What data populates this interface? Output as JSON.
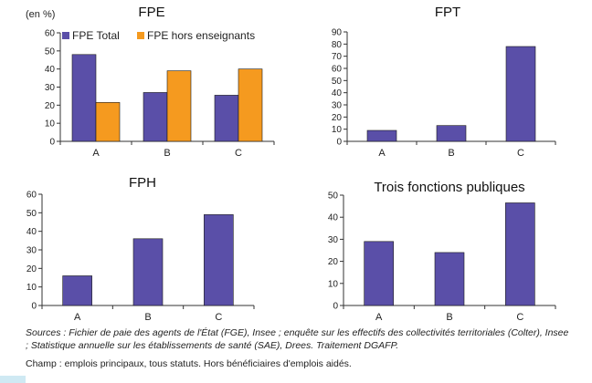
{
  "unit_label": "(en %)",
  "colors": {
    "series1": "#5a4fa8",
    "series2": "#f59a1f",
    "axis": "#333333",
    "grid": "#dddddd"
  },
  "chart_data": [
    {
      "type": "bar",
      "title": "FPE",
      "categories": [
        "A",
        "B",
        "C"
      ],
      "series": [
        {
          "name": "FPE Total",
          "values": [
            48,
            27,
            25.5
          ]
        },
        {
          "name": "FPE hors enseignants",
          "values": [
            21.5,
            39,
            40
          ]
        }
      ],
      "ylim": [
        0,
        60
      ],
      "yticks": [
        0,
        10,
        20,
        30,
        40,
        50,
        60
      ],
      "legend": "top-left"
    },
    {
      "type": "bar",
      "title": "FPT",
      "categories": [
        "A",
        "B",
        "C"
      ],
      "series": [
        {
          "values": [
            9,
            13,
            78
          ]
        }
      ],
      "ylim": [
        0,
        90
      ],
      "yticks": [
        0,
        10,
        20,
        30,
        40,
        50,
        60,
        70,
        80,
        90
      ]
    },
    {
      "type": "bar",
      "title": "FPH",
      "categories": [
        "A",
        "B",
        "C"
      ],
      "series": [
        {
          "values": [
            16,
            36,
            49
          ]
        }
      ],
      "ylim": [
        0,
        60
      ],
      "yticks": [
        0,
        10,
        20,
        30,
        40,
        50,
        60
      ]
    },
    {
      "type": "bar",
      "title": "Trois fonctions publiques",
      "categories": [
        "A",
        "B",
        "C"
      ],
      "series": [
        {
          "values": [
            29,
            24,
            46.5
          ]
        }
      ],
      "ylim": [
        0,
        50
      ],
      "yticks": [
        0,
        10,
        20,
        30,
        40,
        50
      ]
    }
  ],
  "notes": {
    "sources": "Sources : Fichier de paie des agents de l'État (FGE), Insee ; enquête sur les effectifs des collectivités territoriales (Colter), Insee ; Statistique annuelle sur les établissements de santé (SAE), Drees. Traitement DGAFP.",
    "champ": "Champ : emplois principaux, tous statuts. Hors bénéficiaires d'emplois aidés."
  }
}
